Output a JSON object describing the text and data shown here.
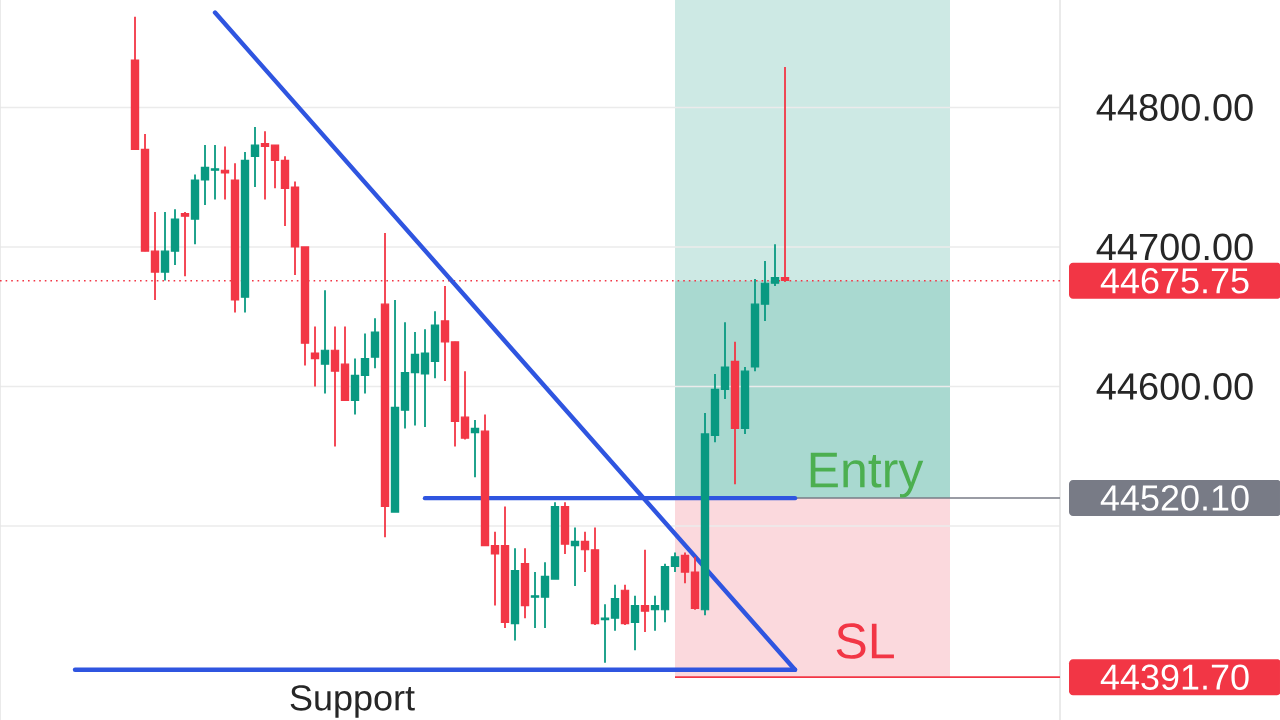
{
  "chart_data": {
    "type": "candlestick",
    "categories": [
      null,
      null,
      null,
      null,
      null,
      null,
      null,
      null,
      null,
      null,
      null,
      null,
      null,
      null,
      null,
      null,
      null,
      null,
      null,
      null,
      null,
      null,
      null,
      null,
      null,
      null,
      null,
      null,
      null,
      null,
      null,
      null,
      null,
      null,
      null,
      null,
      null,
      null,
      null,
      null,
      null,
      null,
      null,
      null,
      null,
      null,
      null,
      null,
      null,
      null,
      null,
      null,
      null,
      null,
      null,
      null,
      null,
      null,
      null,
      null,
      null,
      null,
      null,
      null,
      null,
      null,
      null,
      null,
      null,
      null,
      null,
      null,
      null,
      null,
      null,
      null,
      null,
      null,
      null,
      null,
      null,
      null,
      null,
      null,
      null,
      null,
      null,
      null,
      null,
      null,
      null,
      null,
      null,
      null,
      null,
      null,
      null,
      null,
      null,
      null,
      null,
      null,
      null,
      null,
      null,
      null
    ],
    "ohlc": [
      null,
      null,
      null,
      null,
      null,
      null,
      null,
      null,
      null,
      null,
      null,
      null,
      null,
      [
        44834,
        44865,
        44770,
        44770
      ],
      [
        44770,
        44781,
        44697,
        44697
      ],
      [
        44697,
        44725,
        44662,
        44682
      ],
      [
        44682,
        44725,
        44676,
        44697
      ],
      [
        44697,
        44727,
        44687,
        44720
      ],
      [
        44724,
        44725,
        44679,
        44722
      ],
      [
        44720,
        44752,
        44702,
        44748
      ],
      [
        44748,
        44773,
        44730,
        44757
      ],
      [
        44755,
        44773,
        44734,
        44756
      ],
      [
        44755,
        44772,
        44734,
        44753
      ],
      [
        44748,
        44760,
        44653,
        44662
      ],
      [
        44664,
        44768,
        44653,
        44762
      ],
      [
        44765,
        44786,
        44743,
        44773
      ],
      [
        44774,
        44783,
        44734,
        44772
      ],
      [
        44773,
        44773,
        44742,
        44762
      ],
      [
        44762,
        44765,
        44715,
        44742
      ],
      [
        44743,
        44747,
        44680,
        44700
      ],
      [
        44700,
        44700,
        44615,
        44631
      ],
      [
        44624,
        44643,
        44600,
        44620
      ],
      [
        44616,
        44669,
        44595,
        44626
      ],
      [
        44626,
        44643,
        44557,
        44611
      ],
      [
        44616,
        44643,
        44590,
        44590
      ],
      [
        44590,
        44620,
        44580,
        44608
      ],
      [
        44608,
        44638,
        44595,
        44620
      ],
      [
        44621,
        44649,
        44613,
        44639
      ],
      [
        44659,
        44710,
        44492,
        44514
      ],
      [
        44510,
        44662,
        44510,
        44585
      ],
      [
        44583,
        44646,
        44570,
        44610
      ],
      [
        44610,
        44639,
        44572,
        44623
      ],
      [
        44609,
        44641,
        44571,
        44624
      ],
      [
        44618,
        44654,
        44606,
        44644
      ],
      [
        44647,
        44672,
        44604,
        44632
      ],
      [
        44632,
        44632,
        44557,
        44575
      ],
      [
        44578,
        44611,
        44562,
        44563
      ],
      [
        44567,
        44576,
        44535,
        44570
      ],
      [
        44568,
        44580,
        44486,
        44486
      ],
      [
        44486,
        44496,
        44443,
        44480
      ],
      [
        44486,
        44514,
        44427,
        44431
      ],
      [
        44430,
        44484,
        44418,
        44468
      ],
      [
        44473,
        44484,
        44434,
        44443
      ],
      [
        44449,
        44467,
        44427,
        44450
      ],
      [
        44449,
        44474,
        44427,
        44464
      ],
      [
        44462,
        44517,
        44462,
        44514
      ],
      [
        44514,
        44517,
        44480,
        44487
      ],
      [
        44486,
        44499,
        44457,
        44489
      ],
      [
        44489,
        44496,
        44467,
        44483
      ],
      [
        44483,
        44499,
        44429,
        44430
      ],
      [
        44433,
        44444,
        44402,
        44434
      ],
      [
        44434,
        44458,
        44425,
        44448
      ],
      [
        44454,
        44458,
        44429,
        44430
      ],
      [
        44431,
        44450,
        44411,
        44443
      ],
      [
        44443,
        44483,
        44424,
        44439
      ],
      [
        44440,
        44450,
        44425,
        44443
      ],
      [
        44440,
        44473,
        44431,
        44471
      ],
      [
        44471,
        44481,
        44467,
        44478
      ],
      [
        44479,
        44481,
        44459,
        44467
      ],
      [
        44467,
        44478,
        44440,
        44441
      ],
      [
        44440,
        44581,
        44436,
        44566
      ],
      [
        44565,
        44609,
        44560,
        44598
      ],
      [
        44598,
        44646,
        44591,
        44614
      ],
      [
        44618,
        44632,
        44530,
        44570
      ],
      [
        44570,
        44614,
        44566,
        44611
      ],
      [
        44614,
        44677,
        44611,
        44659
      ],
      [
        44659,
        44690,
        44647,
        44674
      ],
      [
        44674,
        44702,
        44672,
        44678
      ],
      [
        44678,
        44829,
        44675,
        44676
      ],
      null,
      null,
      null,
      null,
      null,
      null,
      null,
      null,
      null,
      null,
      null,
      null,
      null,
      null,
      null,
      null,
      null,
      null,
      null,
      null,
      null,
      null,
      null,
      null,
      null,
      null,
      null
    ],
    "colors": [
      null,
      null,
      null,
      null,
      null,
      null,
      null,
      null,
      null,
      null,
      null,
      null,
      null,
      "#f23645",
      "#f23645",
      "#f23645",
      "#089981",
      "#089981",
      "#f23645",
      "#089981",
      "#089981",
      "#089981",
      "#f23645",
      "#f23645",
      "#089981",
      "#089981",
      "#f23645",
      "#f23645",
      "#f23645",
      "#f23645",
      "#f23645",
      "#f23645",
      "#089981",
      "#f23645",
      "#f23645",
      "#089981",
      "#089981",
      "#089981",
      "#f23645",
      "#089981",
      "#089981",
      "#089981",
      "#089981",
      "#089981",
      "#f23645",
      "#f23645",
      "#f23645",
      "#089981",
      "#f23645",
      "#f23645",
      "#f23645",
      "#089981",
      "#f23645",
      "#089981",
      "#089981",
      "#089981",
      "#f23645",
      "#089981",
      "#f23645",
      "#f23645",
      "#089981",
      "#089981",
      "#f23645",
      "#089981",
      "#f23645",
      "#089981",
      "#089981",
      "#089981",
      "#f23645",
      "#f23645",
      "#089981",
      "#089981",
      "#089981",
      "#f23645",
      "#089981",
      "#089981",
      "#089981",
      "#089981",
      "#f23645",
      null,
      null,
      null,
      null,
      null,
      null,
      null,
      null,
      null,
      null,
      null,
      null,
      null,
      null,
      null,
      null,
      null,
      null,
      null,
      null,
      null,
      null,
      null,
      null,
      null,
      null,
      null
    ],
    "series": [
      {
        "type": "line",
        "color": "#2f55e0",
        "values": [
          null,
          null,
          null,
          null,
          null,
          null,
          null,
          null,
          null,
          null,
          null,
          null,
          null,
          null,
          null,
          null,
          null,
          null,
          null,
          null,
          null,
          44868,
          null,
          null,
          null,
          null,
          null,
          null,
          null,
          null,
          null,
          null,
          null,
          null,
          null,
          null,
          null,
          null,
          null,
          null,
          null,
          null,
          null,
          null,
          null,
          null,
          null,
          null,
          null,
          null,
          null,
          null,
          null,
          null,
          null,
          null,
          null,
          null,
          null,
          null,
          null,
          null,
          null,
          null,
          null,
          null,
          null,
          null,
          null,
          null,
          null,
          null,
          null,
          null,
          null,
          null,
          null,
          null,
          null,
          44397,
          null,
          null,
          null,
          null,
          null,
          null,
          null,
          null,
          null,
          null,
          null,
          null,
          null,
          null,
          null,
          null,
          null,
          null,
          null,
          null,
          null,
          null,
          null,
          null,
          null,
          null
        ]
      },
      {
        "type": "line",
        "color": "#2f55e0",
        "values": [
          null,
          null,
          null,
          null,
          null,
          null,
          null,
          44397,
          null,
          null,
          null,
          null,
          null,
          null,
          null,
          null,
          null,
          null,
          null,
          null,
          null,
          null,
          null,
          null,
          null,
          null,
          null,
          null,
          null,
          null,
          null,
          null,
          null,
          null,
          null,
          null,
          null,
          null,
          null,
          null,
          null,
          null,
          null,
          null,
          null,
          null,
          null,
          null,
          null,
          null,
          null,
          null,
          null,
          null,
          null,
          null,
          null,
          null,
          null,
          null,
          null,
          null,
          null,
          null,
          null,
          null,
          null,
          null,
          null,
          null,
          null,
          null,
          null,
          null,
          null,
          null,
          null,
          null,
          null,
          44397,
          null,
          null,
          null,
          null,
          null,
          null,
          null,
          null,
          null,
          null,
          null,
          null,
          null,
          null,
          null,
          null,
          null,
          null,
          null,
          null,
          null,
          null,
          null,
          null,
          null,
          null
        ]
      },
      {
        "type": "line",
        "color": "#2f55e0",
        "values": [
          null,
          null,
          null,
          null,
          null,
          null,
          null,
          null,
          null,
          null,
          null,
          null,
          null,
          null,
          null,
          null,
          null,
          null,
          null,
          null,
          null,
          null,
          null,
          null,
          null,
          null,
          null,
          null,
          null,
          null,
          null,
          null,
          null,
          null,
          null,
          null,
          null,
          null,
          null,
          null,
          null,
          null,
          44520,
          null,
          null,
          null,
          null,
          null,
          null,
          null,
          null,
          null,
          null,
          null,
          null,
          null,
          null,
          null,
          null,
          null,
          null,
          null,
          null,
          null,
          null,
          null,
          null,
          null,
          null,
          null,
          null,
          null,
          null,
          null,
          null,
          null,
          null,
          null,
          null,
          44520,
          null,
          null,
          null,
          null,
          null,
          null,
          null,
          null,
          null,
          null,
          null,
          null,
          null,
          null,
          null,
          null,
          null,
          null,
          null,
          null,
          null,
          null,
          null,
          null,
          null,
          null
        ]
      }
    ],
    "ylim": [
      44361,
      44877
    ],
    "yticks": [
      {
        "value": 44500,
        "label": null
      },
      {
        "value": 44600,
        "label": "44600.00"
      },
      {
        "value": 44700,
        "label": "44700.00"
      },
      {
        "value": 44800,
        "label": "44800.00"
      }
    ],
    "grid": "y",
    "tick_labels": "y",
    "ref_lines": [
      {
        "axis": "y",
        "value": 44675.75,
        "label": "44675.75",
        "color": "#f23645",
        "line_style": "dotted"
      },
      {
        "axis": "y",
        "value": 44520.1,
        "label": "44520.10",
        "color": "#787b86",
        "line_style": "solid"
      },
      {
        "axis": "y",
        "value": 44391.7,
        "label": "44391.70",
        "color": "#f23645",
        "line_style": "solid"
      }
    ],
    "bands": [
      {
        "axis": "y",
        "from": 44520.1,
        "to": 44877,
        "label": "Entry",
        "color": "#cde9e4"
      },
      {
        "axis": "y",
        "from": 44520.1,
        "to": 44675.75,
        "color": "#a9d9d0"
      },
      {
        "axis": "y",
        "from": 44391.7,
        "to": 44520.1,
        "label": "SL",
        "color": "#fbd9dd"
      }
    ],
    "annotations": [
      "Support"
    ]
  }
}
